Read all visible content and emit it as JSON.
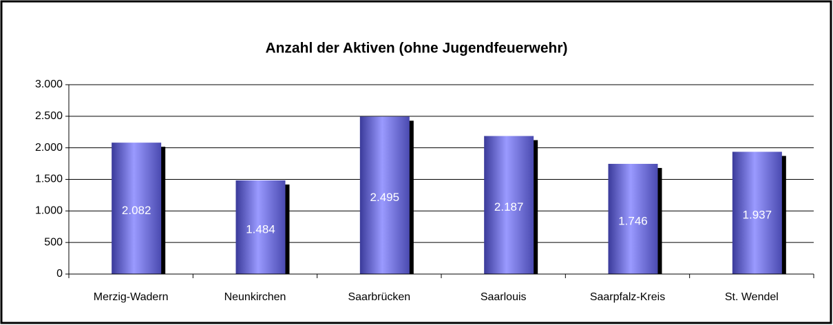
{
  "chart_data": {
    "type": "bar",
    "title": "Anzahl der Aktiven (ohne Jugendfeuerwehr)",
    "categories": [
      "Merzig-Wadern",
      "Neunkirchen",
      "Saarbrücken",
      "Saarlouis",
      "Saarpfalz-Kreis",
      "St. Wendel"
    ],
    "values": [
      2082,
      1484,
      2495,
      2187,
      1746,
      1937
    ],
    "value_labels": [
      "2.082",
      "1.484",
      "2.495",
      "2.187",
      "1.746",
      "1.937"
    ],
    "color": "#6666dd",
    "ylim": [
      0,
      3000
    ],
    "yticks": [
      0,
      500,
      {
        "value": 1000,
        "label": "1.000"
      },
      {
        "value": 1500,
        "label": "1.500"
      },
      {
        "value": 2000,
        "label": "2.000"
      },
      {
        "value": 2500,
        "label": "2.500"
      },
      {
        "value": 3000,
        "label": "3.000"
      }
    ],
    "grid": true
  }
}
